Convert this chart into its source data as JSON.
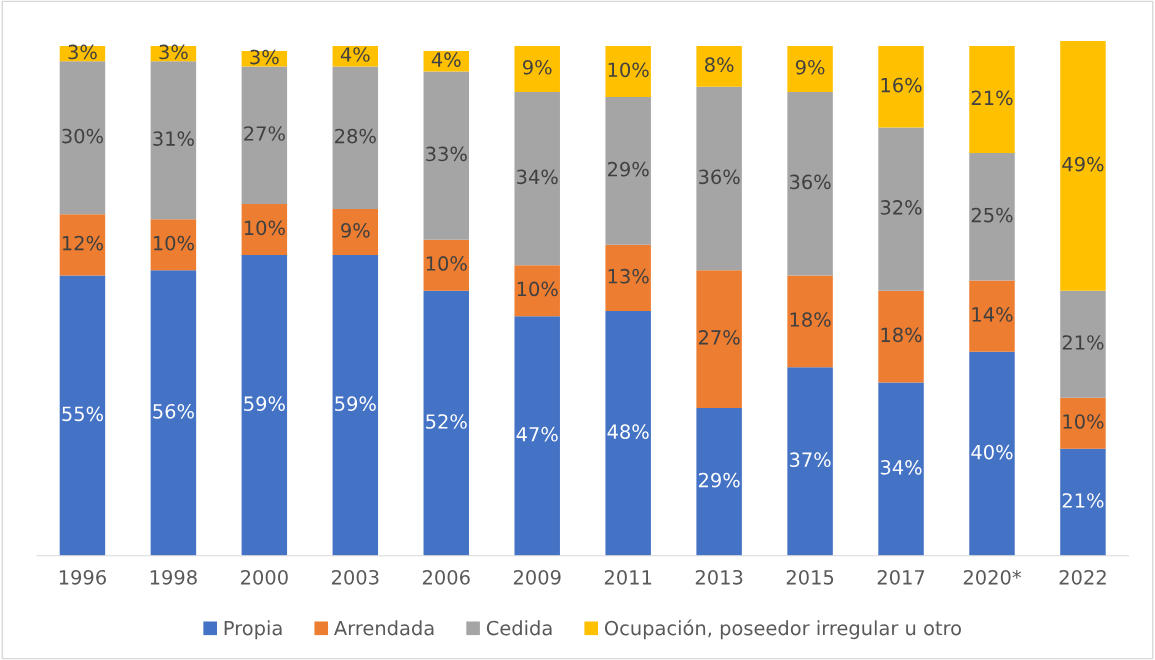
{
  "chart_data": {
    "type": "bar",
    "stacked": true,
    "legend": "bottom",
    "grid": false,
    "tick_labels": "x",
    "categories": [
      "1996",
      "1998",
      "2000",
      "2003",
      "2006",
      "2009",
      "2011",
      "2013",
      "2015",
      "2017",
      "2020*",
      "2022"
    ],
    "series": [
      {
        "name": "Propia",
        "color": "#4472c4",
        "values": [
          55,
          56,
          59,
          59,
          52,
          47,
          48,
          29,
          37,
          34,
          40,
          21
        ],
        "value_labels": [
          "55%",
          "56%",
          "59%",
          "59%",
          "52%",
          "47%",
          "48%",
          "29%",
          "37%",
          "34%",
          "40%",
          "21%"
        ]
      },
      {
        "name": "Arrendada",
        "color": "#ed7d31",
        "values": [
          12,
          10,
          10,
          9,
          10,
          10,
          13,
          27,
          18,
          18,
          14,
          10
        ],
        "value_labels": [
          "12%",
          "10%",
          "10%",
          "9%",
          "10%",
          "10%",
          "13%",
          "27%",
          "18%",
          "18%",
          "14%",
          "10%"
        ]
      },
      {
        "name": "Cedida",
        "color": "#a5a5a5",
        "values": [
          30,
          31,
          27,
          28,
          33,
          34,
          29,
          36,
          36,
          32,
          25,
          21
        ],
        "value_labels": [
          "30%",
          "31%",
          "27%",
          "28%",
          "33%",
          "34%",
          "29%",
          "36%",
          "36%",
          "32%",
          "25%",
          "21%"
        ]
      },
      {
        "name": "Ocupación, poseedor irregular u otro",
        "color": "#ffc000",
        "values": [
          3,
          3,
          3,
          4,
          4,
          9,
          10,
          8,
          9,
          16,
          21,
          49
        ],
        "value_labels": [
          "3%",
          "3%",
          "3%",
          "4%",
          "4%",
          "9%",
          "10%",
          "8%",
          "9%",
          "16%",
          "21%",
          "49%"
        ]
      }
    ]
  }
}
